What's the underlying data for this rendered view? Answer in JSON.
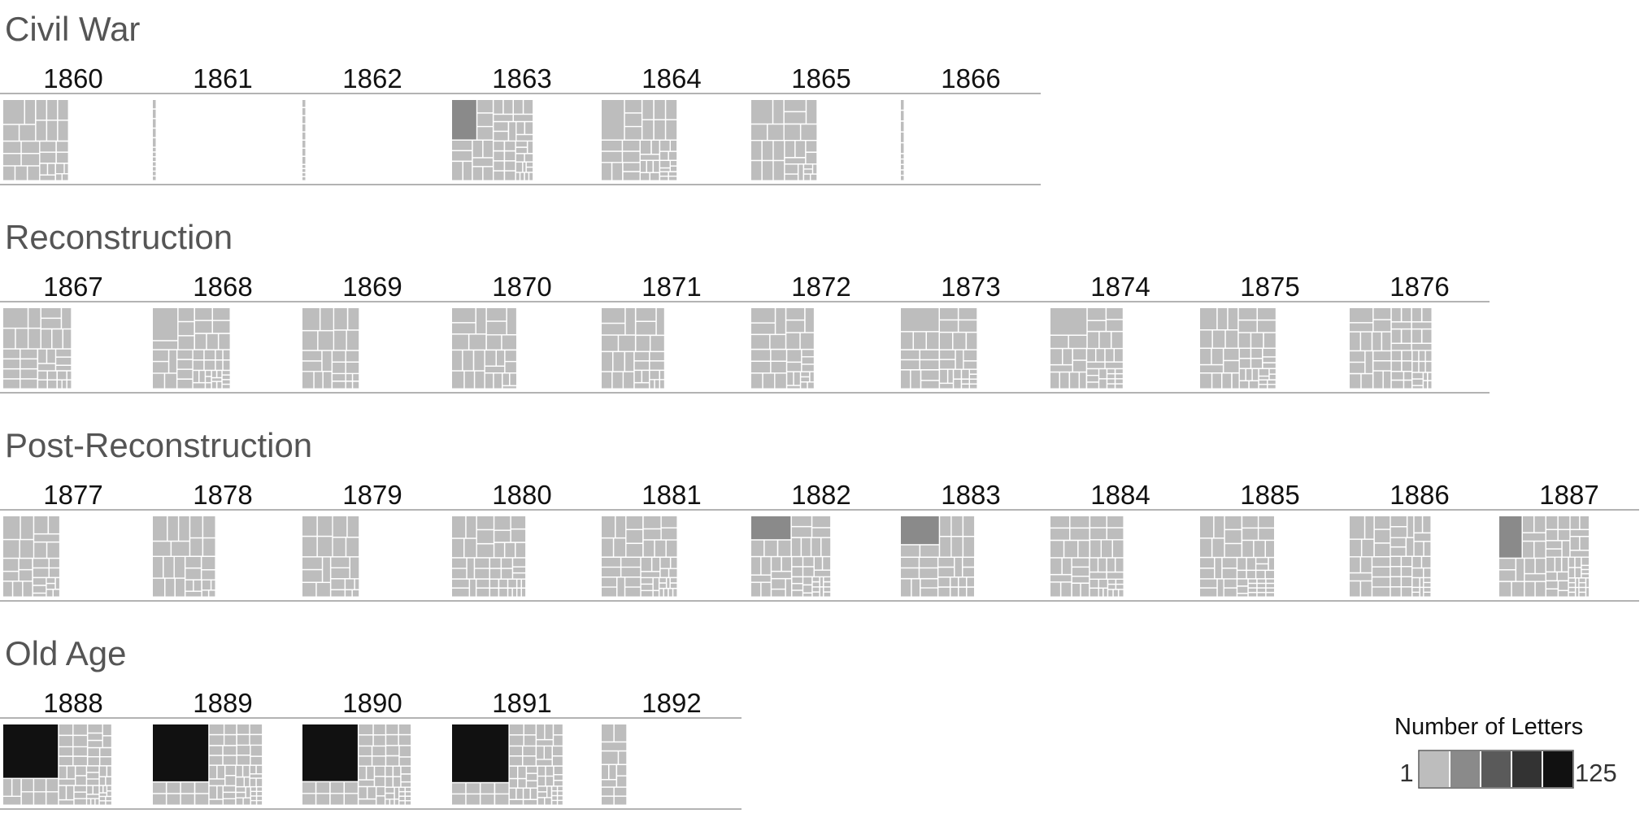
{
  "chart_data": {
    "type": "treemap",
    "title": "",
    "periods": [
      {
        "name": "Civil War",
        "years": [
          {
            "year": "1860",
            "count": 28,
            "max": 12
          },
          {
            "year": "1861",
            "count": 12,
            "max": 2
          },
          {
            "year": "1862",
            "count": 12,
            "max": 2
          },
          {
            "year": "1863",
            "count": 46,
            "max": 28
          },
          {
            "year": "1864",
            "count": 38,
            "max": 24
          },
          {
            "year": "1865",
            "count": 28,
            "max": 12
          },
          {
            "year": "1866",
            "count": 10,
            "max": 2
          }
        ]
      },
      {
        "name": "Reconstruction",
        "years": [
          {
            "year": "1867",
            "count": 34,
            "max": 12
          },
          {
            "year": "1868",
            "count": 44,
            "max": 22
          },
          {
            "year": "1869",
            "count": 24,
            "max": 8
          },
          {
            "year": "1870",
            "count": 26,
            "max": 8
          },
          {
            "year": "1871",
            "count": 28,
            "max": 8
          },
          {
            "year": "1872",
            "count": 30,
            "max": 8
          },
          {
            "year": "1873",
            "count": 36,
            "max": 24
          },
          {
            "year": "1874",
            "count": 38,
            "max": 25
          },
          {
            "year": "1875",
            "count": 42,
            "max": 10
          },
          {
            "year": "1876",
            "count": 50,
            "max": 10
          }
        ]
      },
      {
        "name": "Post-Reconstruction",
        "years": [
          {
            "year": "1877",
            "count": 28,
            "max": 8
          },
          {
            "year": "1878",
            "count": 26,
            "max": 8
          },
          {
            "year": "1879",
            "count": 22,
            "max": 6
          },
          {
            "year": "1880",
            "count": 42,
            "max": 8
          },
          {
            "year": "1881",
            "count": 44,
            "max": 8
          },
          {
            "year": "1882",
            "count": 46,
            "max": 26
          },
          {
            "year": "1883",
            "count": 30,
            "max": 28
          },
          {
            "year": "1884",
            "count": 42,
            "max": 6
          },
          {
            "year": "1885",
            "count": 48,
            "max": 8
          },
          {
            "year": "1886",
            "count": 48,
            "max": 10
          },
          {
            "year": "1887",
            "count": 58,
            "max": 30
          }
        ]
      },
      {
        "name": "Old Age",
        "years": [
          {
            "year": "1888",
            "count": 60,
            "max": 110
          },
          {
            "year": "1889",
            "count": 58,
            "max": 120
          },
          {
            "year": "1890",
            "count": 56,
            "max": 118
          },
          {
            "year": "1891",
            "count": 60,
            "max": 125
          },
          {
            "year": "1892",
            "count": 14,
            "max": 2
          }
        ]
      }
    ],
    "legend": {
      "title": "Number of Letters",
      "min_label": "1",
      "max_label": "125",
      "min": 1,
      "max": 125,
      "colors": [
        "#bdbdbd",
        "#8a8a8a",
        "#5a5a5a",
        "#333333",
        "#111111"
      ]
    },
    "colors": {
      "background": "#ffffff",
      "divider": "#9a9a9a",
      "cell_light": "#c4c4c4"
    }
  }
}
